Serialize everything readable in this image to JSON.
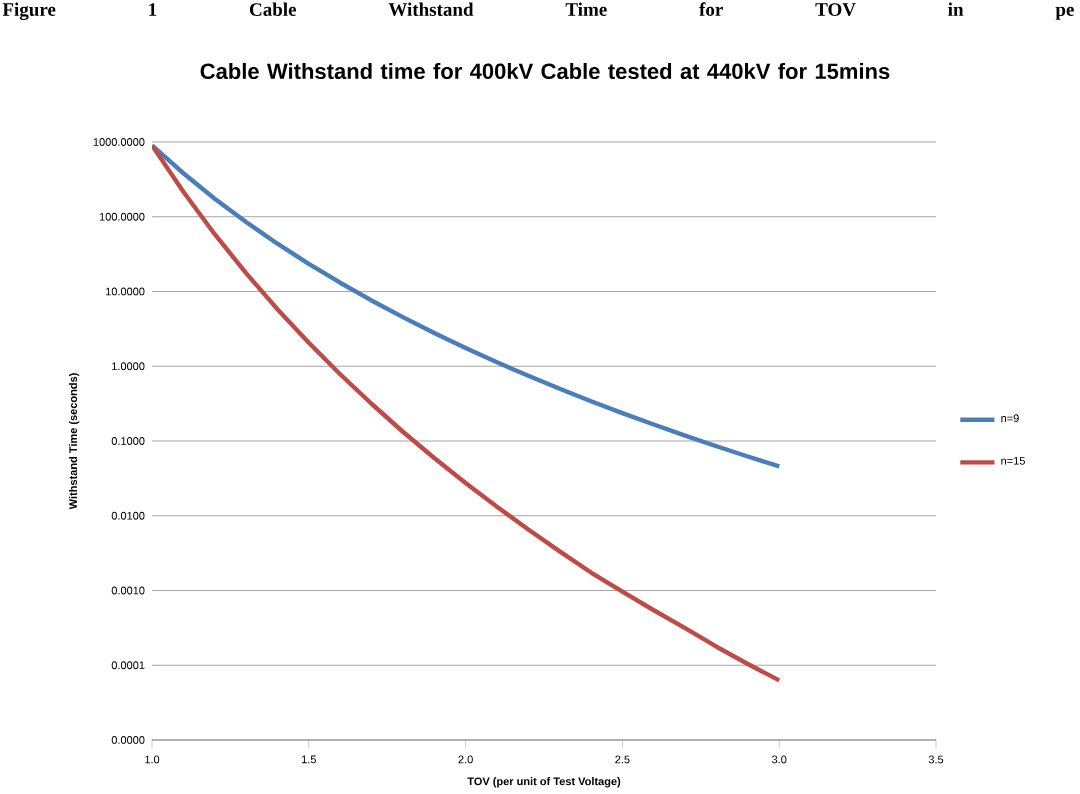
{
  "chart_data": {
    "type": "line",
    "title": "Cable Withstand time for 400kV Cable tested at 440kV for 15mins",
    "xlabel": "TOV (per unit of Test Voltage)",
    "ylabel": "Withstand Time (seconds)",
    "annotations": [
      "Figure 1 Cable Withstand Time for TOV in pe"
    ],
    "x": [
      1.0,
      1.1,
      1.2,
      1.3,
      1.4,
      1.5,
      1.6,
      1.7,
      1.8,
      1.9,
      2.0,
      2.1,
      2.2,
      2.3,
      2.4,
      2.5,
      2.6,
      2.7,
      2.8,
      2.9,
      3.0
    ],
    "series": [
      {
        "name": "n=9",
        "color": "#4a7ebb",
        "values": [
          900,
          382,
          174,
          84.9,
          43.6,
          23.4,
          13.1,
          7.59,
          4.54,
          2.79,
          1.76,
          1.13,
          0.746,
          0.5,
          0.341,
          0.236,
          0.166,
          0.118,
          0.0851,
          0.062,
          0.0457
        ]
      },
      {
        "name": "n=15",
        "color": "#be4b48",
        "values": [
          900,
          216,
          58.4,
          17.6,
          5.79,
          2.06,
          0.781,
          0.315,
          0.133,
          0.0593,
          0.0275,
          0.0132,
          0.00655,
          0.00334,
          0.00174,
          0.000966,
          0.000544,
          0.000313,
          0.000177,
          0.000104,
          6.27e-05
        ]
      }
    ],
    "xlim": [
      1.0,
      3.5
    ],
    "ylim": [
      1e-05,
      1000
    ],
    "xticks": [
      {
        "value": 1.0,
        "label": "1.0"
      },
      {
        "value": 1.5,
        "label": "1.5"
      },
      {
        "value": 2.0,
        "label": "2.0"
      },
      {
        "value": 2.5,
        "label": "2.5"
      },
      {
        "value": 3.0,
        "label": "3.0"
      },
      {
        "value": 3.5,
        "label": "3.5"
      }
    ],
    "yticks": [
      {
        "value": 1e-05,
        "label": "0.0000"
      },
      {
        "value": 0.0001,
        "label": "0.0001"
      },
      {
        "value": 0.001,
        "label": "0.0010"
      },
      {
        "value": 0.01,
        "label": "0.0100"
      },
      {
        "value": 0.1,
        "label": "0.1000"
      },
      {
        "value": 1,
        "label": "1.0000"
      },
      {
        "value": 10,
        "label": "10.0000"
      },
      {
        "value": 100,
        "label": "100.0000"
      },
      {
        "value": 1000,
        "label": "1000.0000"
      }
    ],
    "log": "y",
    "grid": "y",
    "legend": "right",
    "line_style": "solid"
  }
}
